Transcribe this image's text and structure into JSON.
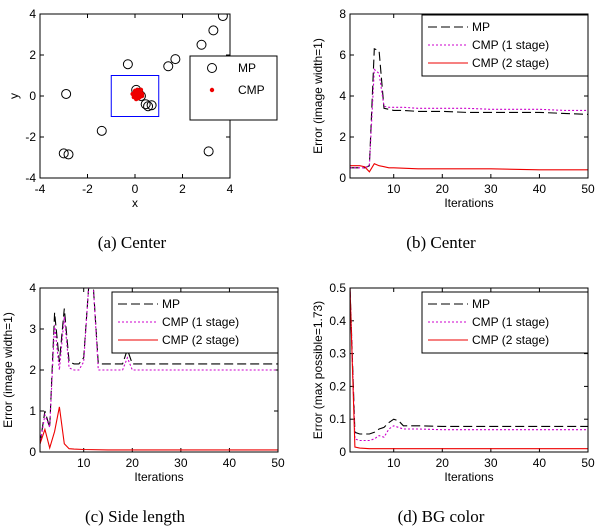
{
  "colors": {
    "mp": "#000000",
    "cmp1": "#cc00cc",
    "cmp2": "#ee0000",
    "box": "#0000ff"
  },
  "chart_data": [
    {
      "type": "scatter",
      "caption": "(a) Center",
      "xlabel": "x",
      "ylabel": "y",
      "xlim": [
        -4,
        4
      ],
      "ylim": [
        -4,
        4
      ],
      "xticks": [
        -4,
        -2,
        0,
        2,
        4
      ],
      "yticks": [
        -4,
        -2,
        0,
        2,
        4
      ],
      "legend_position": "right",
      "box": {
        "x": [
          -1,
          1
        ],
        "y": [
          -1,
          1
        ]
      },
      "series": [
        {
          "name": "MP",
          "marker": "circle",
          "color": "#000000",
          "x": [
            3.7,
            3.3,
            2.8,
            1.7,
            1.4,
            -0.3,
            -2.9,
            0.05,
            0.15,
            0.25,
            0.45,
            0.55,
            0.7,
            -1.4,
            -3.0,
            -2.8,
            3.1
          ],
          "y": [
            3.9,
            3.2,
            2.5,
            1.8,
            1.45,
            1.55,
            0.1,
            0.3,
            0.15,
            0.0,
            -0.4,
            -0.5,
            -0.45,
            -1.7,
            -2.8,
            -2.85,
            -2.7
          ]
        },
        {
          "name": "CMP",
          "marker": "dot",
          "color": "#ee0000",
          "x": [
            -0.05,
            0.0,
            0.05,
            0.1,
            0.15,
            0.2,
            0.25,
            0.3,
            0.05,
            0.15,
            0.0,
            0.2,
            -0.1,
            0.1,
            0.3,
            0.25
          ],
          "y": [
            -0.05,
            0.05,
            0.0,
            0.1,
            -0.1,
            0.05,
            0.15,
            0.0,
            -0.15,
            0.2,
            0.25,
            -0.05,
            0.1,
            0.3,
            0.1,
            0.3
          ]
        }
      ]
    },
    {
      "type": "line",
      "caption": "(b) Center",
      "xlabel": "Iterations",
      "ylabel": "Error (image width=1)",
      "xlim": [
        1,
        50
      ],
      "ylim": [
        0,
        8
      ],
      "xticks": [
        10,
        20,
        30,
        40,
        50
      ],
      "yticks": [
        0,
        2,
        4,
        6,
        8
      ],
      "legend_position": "top-right",
      "series": [
        {
          "name": "MP",
          "style": "dashed",
          "color": "#000000",
          "x": [
            1,
            2,
            3,
            4,
            5,
            6,
            7,
            8,
            9,
            10,
            12,
            15,
            20,
            25,
            30,
            35,
            40,
            45,
            50
          ],
          "y": [
            0.5,
            0.5,
            0.5,
            0.5,
            0.6,
            6.3,
            6.2,
            3.4,
            3.35,
            3.3,
            3.3,
            3.25,
            3.25,
            3.2,
            3.2,
            3.2,
            3.2,
            3.15,
            3.1
          ]
        },
        {
          "name": "CMP (1 stage)",
          "style": "dotted",
          "color": "#cc00cc",
          "x": [
            1,
            2,
            3,
            4,
            5,
            6,
            7,
            8,
            9,
            10,
            12,
            15,
            20,
            25,
            30,
            35,
            40,
            45,
            50
          ],
          "y": [
            0.5,
            0.5,
            0.5,
            0.5,
            0.6,
            5.3,
            5.1,
            3.5,
            3.45,
            3.45,
            3.45,
            3.4,
            3.4,
            3.4,
            3.35,
            3.35,
            3.35,
            3.3,
            3.3
          ]
        },
        {
          "name": "CMP (2 stage)",
          "style": "solid",
          "color": "#ee0000",
          "x": [
            1,
            2,
            3,
            4,
            5,
            6,
            7,
            8,
            9,
            10,
            15,
            20,
            30,
            40,
            50
          ],
          "y": [
            0.6,
            0.6,
            0.6,
            0.55,
            0.3,
            0.7,
            0.6,
            0.55,
            0.5,
            0.5,
            0.45,
            0.45,
            0.45,
            0.4,
            0.4
          ]
        }
      ]
    },
    {
      "type": "line",
      "caption": "(c) Side length",
      "xlabel": "Iterations",
      "ylabel": "Error (image width=1)",
      "xlim": [
        1,
        50
      ],
      "ylim": [
        0,
        4
      ],
      "xticks": [
        10,
        20,
        30,
        40,
        50
      ],
      "yticks": [
        0,
        1,
        2,
        3,
        4
      ],
      "legend_position": "top-right",
      "series": [
        {
          "name": "MP",
          "style": "dashed",
          "color": "#000000",
          "x": [
            1,
            2,
            3,
            4,
            5,
            6,
            7,
            8,
            9,
            10,
            11,
            12,
            13,
            15,
            18,
            19,
            20,
            25,
            30,
            40,
            50
          ],
          "y": [
            0.2,
            1.0,
            0.6,
            3.4,
            2.2,
            3.5,
            2.2,
            2.15,
            2.15,
            2.3,
            4.0,
            4.0,
            2.15,
            2.15,
            2.15,
            2.5,
            2.15,
            2.15,
            2.15,
            2.15,
            2.15
          ]
        },
        {
          "name": "CMP (1 stage)",
          "style": "dotted",
          "color": "#cc00cc",
          "x": [
            1,
            2,
            3,
            4,
            5,
            6,
            7,
            8,
            9,
            10,
            11,
            12,
            13,
            15,
            18,
            19,
            20,
            25,
            30,
            40,
            50
          ],
          "y": [
            0.2,
            0.9,
            0.6,
            3.1,
            2.0,
            3.3,
            2.05,
            2.0,
            2.0,
            2.2,
            4.0,
            4.0,
            2.0,
            2.0,
            2.0,
            2.3,
            2.0,
            2.0,
            2.0,
            2.0,
            2.0
          ]
        },
        {
          "name": "CMP (2 stage)",
          "style": "solid",
          "color": "#ee0000",
          "x": [
            1,
            2,
            3,
            4,
            5,
            6,
            7,
            8,
            10,
            15,
            20,
            30,
            40,
            50
          ],
          "y": [
            0.2,
            0.55,
            0.1,
            0.5,
            1.1,
            0.2,
            0.08,
            0.07,
            0.06,
            0.05,
            0.05,
            0.05,
            0.05,
            0.05
          ]
        }
      ]
    },
    {
      "type": "line",
      "caption": "(d) BG color",
      "xlabel": "Iterations",
      "ylabel": "Error (max possible=1.73)",
      "xlim": [
        1,
        50
      ],
      "ylim": [
        0,
        0.5
      ],
      "xticks": [
        10,
        20,
        30,
        40,
        50
      ],
      "yticks": [
        0,
        0.1,
        0.2,
        0.3,
        0.4,
        0.5
      ],
      "legend_position": "top-right",
      "series": [
        {
          "name": "MP",
          "style": "dashed",
          "color": "#000000",
          "x": [
            1,
            2,
            3,
            4,
            5,
            6,
            7,
            8,
            9,
            10,
            11,
            12,
            15,
            20,
            30,
            40,
            50
          ],
          "y": [
            0.5,
            0.06,
            0.055,
            0.055,
            0.055,
            0.06,
            0.07,
            0.075,
            0.09,
            0.1,
            0.095,
            0.08,
            0.08,
            0.078,
            0.078,
            0.078,
            0.078
          ]
        },
        {
          "name": "CMP (1 stage)",
          "style": "dotted",
          "color": "#cc00cc",
          "x": [
            1,
            2,
            3,
            4,
            5,
            6,
            7,
            8,
            9,
            10,
            11,
            12,
            15,
            20,
            30,
            40,
            50
          ],
          "y": [
            0.5,
            0.04,
            0.035,
            0.035,
            0.035,
            0.04,
            0.05,
            0.045,
            0.07,
            0.08,
            0.075,
            0.07,
            0.07,
            0.068,
            0.068,
            0.068,
            0.068
          ]
        },
        {
          "name": "CMP (2 stage)",
          "style": "solid",
          "color": "#ee0000",
          "x": [
            1,
            2,
            3,
            5,
            10,
            20,
            30,
            40,
            50
          ],
          "y": [
            0.5,
            0.015,
            0.012,
            0.01,
            0.01,
            0.01,
            0.01,
            0.01,
            0.01
          ]
        }
      ]
    }
  ]
}
